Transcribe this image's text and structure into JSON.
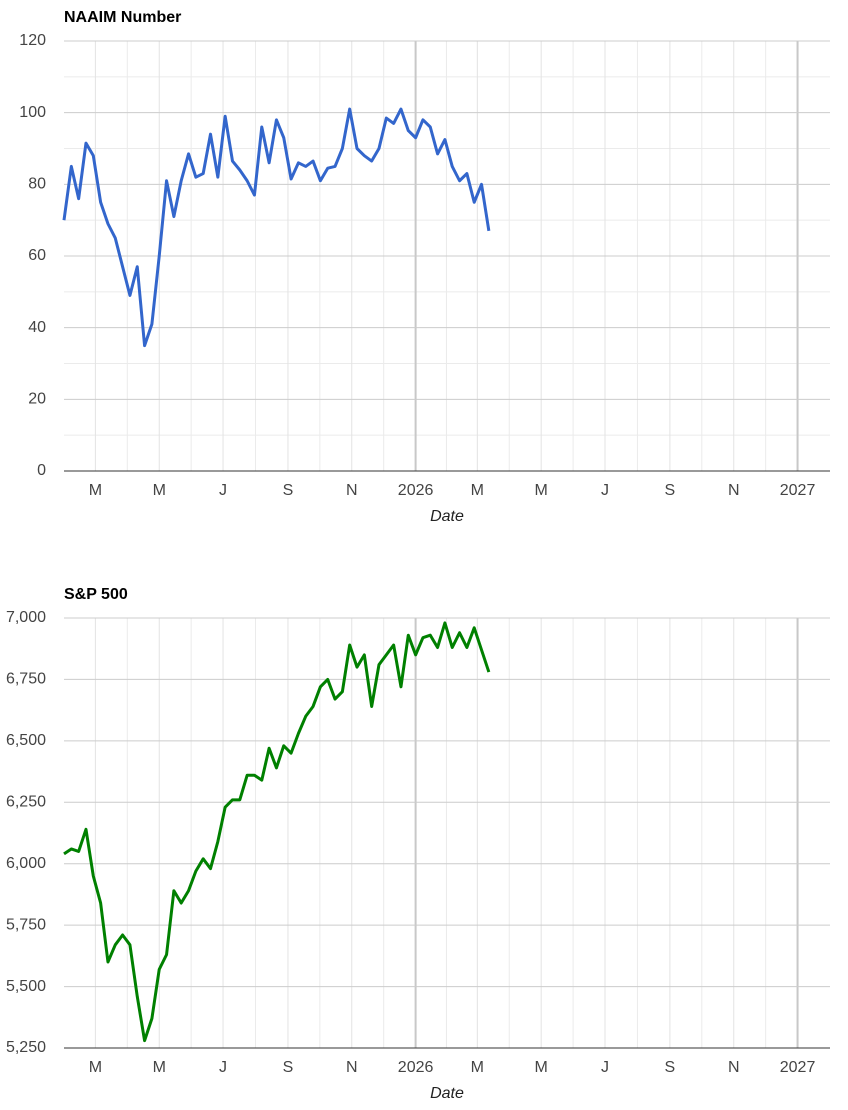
{
  "chart_data": [
    {
      "type": "line",
      "title": "NAAIM Number",
      "x_label": "Date",
      "x": [
        "2025-01-30",
        "2025-02-06",
        "2025-02-13",
        "2025-02-20",
        "2025-02-27",
        "2025-03-06",
        "2025-03-13",
        "2025-03-20",
        "2025-03-27",
        "2025-04-03",
        "2025-04-10",
        "2025-04-17",
        "2025-04-24",
        "2025-05-01",
        "2025-05-08",
        "2025-05-15",
        "2025-05-22",
        "2025-05-29",
        "2025-06-05",
        "2025-06-12",
        "2025-06-19",
        "2025-06-26",
        "2025-07-03",
        "2025-07-10",
        "2025-07-17",
        "2025-07-24",
        "2025-07-31",
        "2025-08-07",
        "2025-08-14",
        "2025-08-21",
        "2025-08-28",
        "2025-09-04",
        "2025-09-11",
        "2025-09-18",
        "2025-09-25",
        "2025-10-02",
        "2025-10-09",
        "2025-10-16",
        "2025-10-23",
        "2025-10-30",
        "2025-11-06",
        "2025-11-13",
        "2025-11-20",
        "2025-11-27",
        "2025-12-04",
        "2025-12-11",
        "2025-12-18",
        "2025-12-25",
        "2026-01-01",
        "2026-01-08",
        "2026-01-15",
        "2026-01-22",
        "2026-01-29",
        "2026-02-05",
        "2026-02-12",
        "2026-02-19",
        "2026-02-26",
        "2026-03-05",
        "2026-03-12"
      ],
      "series": [
        {
          "name": "NAAIM Number",
          "color": "#3366cc",
          "values": [
            70,
            85,
            76,
            91.5,
            88,
            75,
            69,
            65,
            57,
            49,
            57,
            35,
            41,
            60,
            81,
            71,
            81,
            88.5,
            82,
            83,
            94,
            82,
            99,
            86.5,
            84,
            81,
            77,
            96,
            86,
            98,
            93,
            81.5,
            86,
            85,
            86.5,
            81,
            84.5,
            85,
            90,
            101,
            90,
            88,
            86.5,
            90,
            98.5,
            97,
            101,
            95,
            93,
            98,
            96,
            88.5,
            92.5,
            85,
            81,
            83,
            75,
            80,
            67
          ]
        }
      ],
      "xlim": [
        "2025-01-30",
        "2027-02-01"
      ],
      "xticks": [
        {
          "value": "2025-03-01",
          "label": "M"
        },
        {
          "value": "2025-05-01",
          "label": "M"
        },
        {
          "value": "2025-07-01",
          "label": "J"
        },
        {
          "value": "2025-09-01",
          "label": "S"
        },
        {
          "value": "2025-11-01",
          "label": "N"
        },
        {
          "value": "2026-01-01",
          "label": "2026"
        },
        {
          "value": "2026-03-01",
          "label": "M"
        },
        {
          "value": "2026-05-01",
          "label": "M"
        },
        {
          "value": "2026-07-01",
          "label": "J"
        },
        {
          "value": "2026-09-01",
          "label": "S"
        },
        {
          "value": "2026-11-01",
          "label": "N"
        },
        {
          "value": "2027-01-01",
          "label": "2027"
        }
      ],
      "ylim": [
        0,
        120
      ],
      "yticks": [
        0,
        20,
        40,
        60,
        80,
        100,
        120
      ],
      "grid": true,
      "y_minor_grid": true
    },
    {
      "type": "line",
      "title": "S&P 500",
      "x_label": "Date",
      "x": [
        "2025-01-30",
        "2025-02-06",
        "2025-02-13",
        "2025-02-20",
        "2025-02-27",
        "2025-03-06",
        "2025-03-13",
        "2025-03-20",
        "2025-03-27",
        "2025-04-03",
        "2025-04-10",
        "2025-04-17",
        "2025-04-24",
        "2025-05-01",
        "2025-05-08",
        "2025-05-15",
        "2025-05-22",
        "2025-05-29",
        "2025-06-05",
        "2025-06-12",
        "2025-06-19",
        "2025-06-26",
        "2025-07-03",
        "2025-07-10",
        "2025-07-17",
        "2025-07-24",
        "2025-07-31",
        "2025-08-07",
        "2025-08-14",
        "2025-08-21",
        "2025-08-28",
        "2025-09-04",
        "2025-09-11",
        "2025-09-18",
        "2025-09-25",
        "2025-10-02",
        "2025-10-09",
        "2025-10-16",
        "2025-10-23",
        "2025-10-30",
        "2025-11-06",
        "2025-11-13",
        "2025-11-20",
        "2025-11-27",
        "2025-12-04",
        "2025-12-11",
        "2025-12-18",
        "2025-12-25",
        "2026-01-01",
        "2026-01-08",
        "2026-01-15",
        "2026-01-22",
        "2026-01-29",
        "2026-02-05",
        "2026-02-12",
        "2026-02-19",
        "2026-02-26",
        "2026-03-05",
        "2026-03-12"
      ],
      "series": [
        {
          "name": "S&P 500",
          "color": "#008000",
          "values": [
            6040,
            6060,
            6050,
            6140,
            5950,
            5840,
            5600,
            5670,
            5710,
            5670,
            5460,
            5280,
            5370,
            5570,
            5630,
            5890,
            5840,
            5890,
            5970,
            6020,
            5980,
            6090,
            6230,
            6260,
            6260,
            6360,
            6360,
            6340,
            6470,
            6390,
            6480,
            6450,
            6530,
            6600,
            6640,
            6720,
            6750,
            6670,
            6700,
            6890,
            6800,
            6850,
            6640,
            6810,
            6850,
            6890,
            6720,
            6930,
            6850,
            6920,
            6930,
            6880,
            6980,
            6880,
            6940,
            6880,
            6960,
            6870,
            6780
          ]
        }
      ],
      "xlim": [
        "2025-01-30",
        "2027-02-01"
      ],
      "xticks": [
        {
          "value": "2025-03-01",
          "label": "M"
        },
        {
          "value": "2025-05-01",
          "label": "M"
        },
        {
          "value": "2025-07-01",
          "label": "J"
        },
        {
          "value": "2025-09-01",
          "label": "S"
        },
        {
          "value": "2025-11-01",
          "label": "N"
        },
        {
          "value": "2026-01-01",
          "label": "2026"
        },
        {
          "value": "2026-03-01",
          "label": "M"
        },
        {
          "value": "2026-05-01",
          "label": "M"
        },
        {
          "value": "2026-07-01",
          "label": "J"
        },
        {
          "value": "2026-09-01",
          "label": "S"
        },
        {
          "value": "2026-11-01",
          "label": "N"
        },
        {
          "value": "2027-01-01",
          "label": "2027"
        }
      ],
      "ylim": [
        5250,
        7000
      ],
      "yticks": [
        {
          "value": 5250,
          "label": "5,250"
        },
        {
          "value": 5500,
          "label": "5,500"
        },
        {
          "value": 5750,
          "label": "5,750"
        },
        {
          "value": 6000,
          "label": "6,000"
        },
        {
          "value": 6250,
          "label": "6,250"
        },
        {
          "value": 6500,
          "label": "6,500"
        },
        {
          "value": 6750,
          "label": "6,750"
        },
        {
          "value": 7000,
          "label": "7,000"
        }
      ],
      "grid": true,
      "y_minor_grid": false
    }
  ]
}
